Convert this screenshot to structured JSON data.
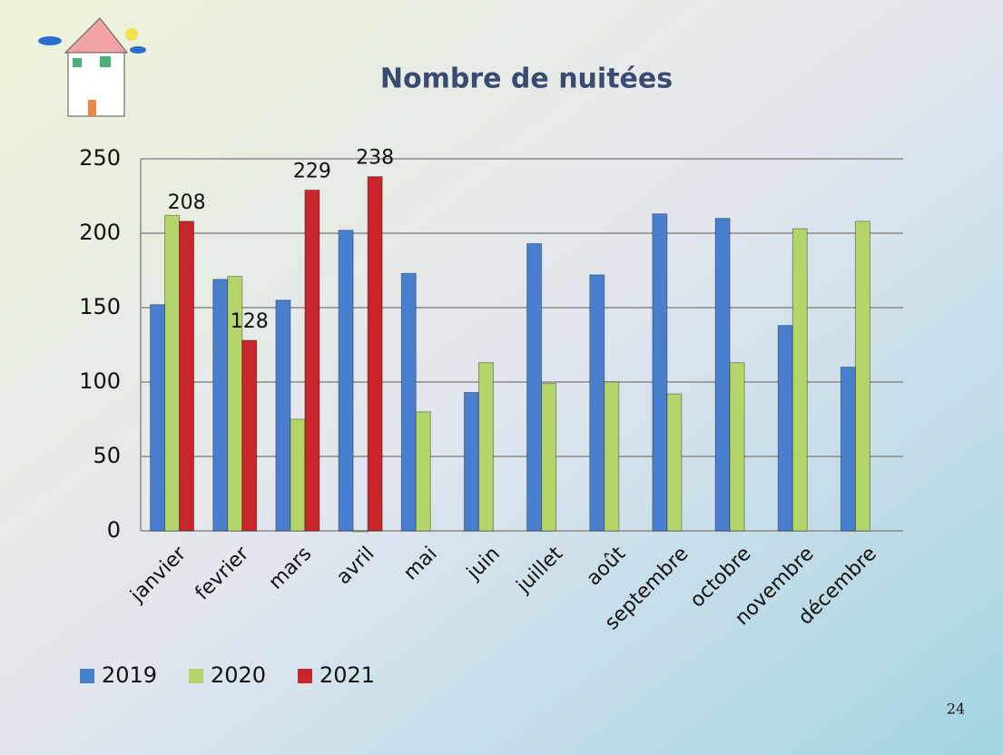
{
  "chart_data": {
    "type": "bar",
    "title": "Nombre de nuitées",
    "categories": [
      "janvier",
      "fevrier",
      "mars",
      "avril",
      "mai",
      "juin",
      "juillet",
      "août",
      "septembre",
      "octobre",
      "novembre",
      "décembre"
    ],
    "series": [
      {
        "name": "2019",
        "color": "#4a7fd0",
        "values": [
          152,
          169,
          155,
          202,
          173,
          93,
          193,
          172,
          213,
          210,
          138,
          110
        ]
      },
      {
        "name": "2020",
        "color": "#b4d56a",
        "values": [
          212,
          171,
          75,
          0,
          80,
          113,
          99,
          100,
          92,
          113,
          203,
          208
        ]
      },
      {
        "name": "2021",
        "color": "#c8262a",
        "values": [
          208,
          128,
          229,
          238,
          null,
          null,
          null,
          null,
          null,
          null,
          null,
          null
        ]
      }
    ],
    "data_labels_series": "2021",
    "ylim": [
      0,
      250
    ],
    "yticks": [
      0,
      50,
      100,
      150,
      200,
      250
    ],
    "grid": true,
    "legend": "bottom-left",
    "page_number": "24"
  }
}
